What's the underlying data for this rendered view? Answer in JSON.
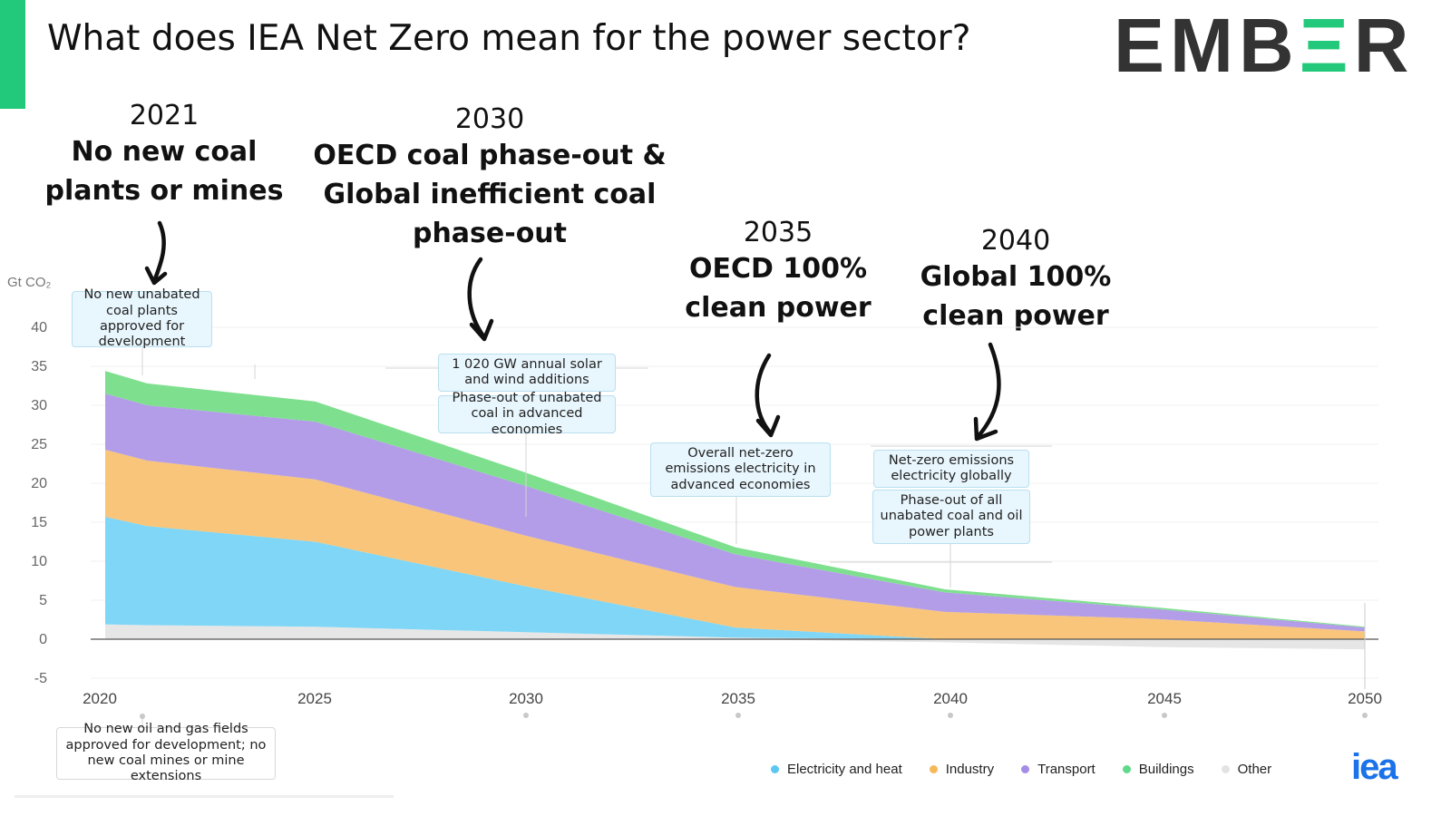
{
  "slide": {
    "title": "What does IEA Net Zero mean for the power sector?",
    "logo_prefix": "EMB",
    "logo_mid": "Ξ",
    "logo_suffix": "R",
    "accent_color": "#22c97a"
  },
  "callouts": [
    {
      "year": "2021",
      "text": "No new coal plants or mines"
    },
    {
      "year": "2030",
      "text": "OECD coal phase-out & Global inefficient coal phase-out"
    },
    {
      "year": "2035",
      "text": "OECD 100% clean power"
    },
    {
      "year": "2040",
      "text": "Global 100% clean power"
    }
  ],
  "annotations": [
    {
      "text": "No new unabated coal plants approved for development"
    },
    {
      "text": "1 020 GW annual solar and wind additions"
    },
    {
      "text": "Phase-out of unabated coal in advanced economies"
    },
    {
      "text": "Overall net-zero emissions electricity in advanced economies"
    },
    {
      "text": "Net-zero emissions electricity globally"
    },
    {
      "text": "Phase-out of all unabated coal and oil power plants"
    },
    {
      "text": "No new oil and gas fields approved for development; no new coal mines or mine extensions"
    }
  ],
  "source_logo": "iea",
  "chart_data": {
    "type": "area",
    "stacked": true,
    "ylabel": "Gt CO₂",
    "xlabel": "",
    "xlim": [
      2020,
      2050
    ],
    "ylim": [
      -5,
      40
    ],
    "yticks": [
      40,
      35,
      30,
      25,
      20,
      15,
      10,
      5,
      0,
      -5
    ],
    "xticks": [
      2020,
      2025,
      2030,
      2035,
      2040,
      2045,
      2050
    ],
    "grid": true,
    "legend_position": "bottom-right",
    "x": [
      2020,
      2021,
      2025,
      2030,
      2035,
      2040,
      2045,
      2050
    ],
    "series": [
      {
        "name": "Other",
        "color": "#e6e6e6",
        "values": [
          1.9,
          1.8,
          1.6,
          0.9,
          0.2,
          -0.4,
          -1.0,
          -1.3
        ]
      },
      {
        "name": "Electricity and heat",
        "color": "#7fd6f6",
        "values": [
          13.8,
          12.7,
          10.9,
          5.9,
          1.3,
          0.0,
          0.0,
          -0.1
        ]
      },
      {
        "name": "Industry",
        "color": "#f8c57a",
        "values": [
          8.6,
          8.4,
          8.0,
          6.5,
          5.2,
          3.5,
          2.6,
          1.0
        ]
      },
      {
        "name": "Transport",
        "color": "#b39de8",
        "values": [
          7.2,
          7.1,
          7.4,
          6.4,
          4.2,
          2.5,
          1.3,
          0.5
        ]
      },
      {
        "name": "Buildings",
        "color": "#7ee08e",
        "values": [
          2.9,
          2.8,
          2.6,
          1.7,
          0.9,
          0.4,
          0.2,
          0.1
        ]
      }
    ]
  },
  "legend": [
    {
      "label": "Electricity and heat",
      "color": "#5cc8f2"
    },
    {
      "label": "Industry",
      "color": "#f5b95a"
    },
    {
      "label": "Transport",
      "color": "#a58de6"
    },
    {
      "label": "Buildings",
      "color": "#5fd98a"
    },
    {
      "label": "Other",
      "color": "#e3e3e3"
    }
  ]
}
